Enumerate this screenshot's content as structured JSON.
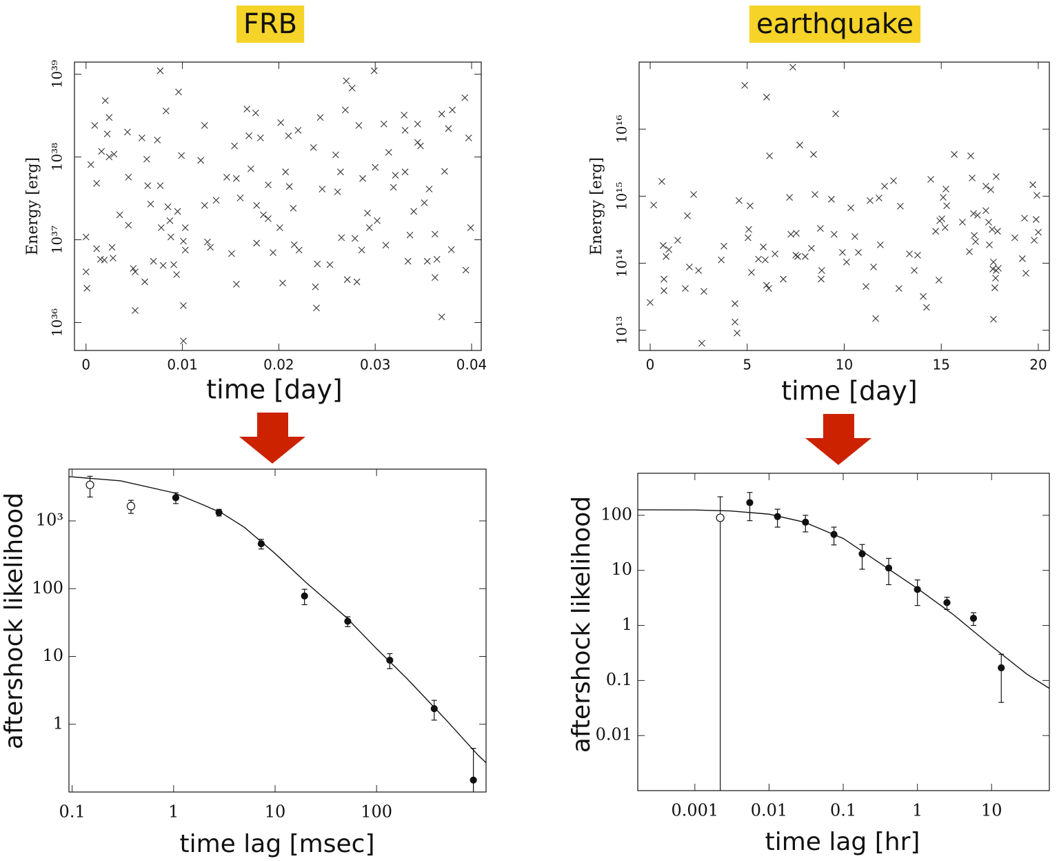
{
  "chart_data": [
    {
      "type": "scatter",
      "title": "FRB",
      "xlabel": "time [day]",
      "ylabel": "Energy [erg]",
      "color": "#333333",
      "marker": "x",
      "ylog": true,
      "xlog": false,
      "xlim": [
        -0.0012,
        0.041
      ],
      "ylim": [
        4.6e+35,
        1.4e+39
      ],
      "xticks": [
        0,
        0.01,
        0.02,
        0.03,
        0.04
      ],
      "yticks": [
        {
          "value": 1e+36,
          "label": "10³⁶"
        },
        {
          "value": 1e+37,
          "label": "10³⁷"
        },
        {
          "value": 1e+38,
          "label": "10³⁸"
        },
        {
          "value": 1e+39,
          "label": "10³⁹"
        }
      ],
      "x": [
        0,
        0,
        0.0001,
        0.0005,
        0.0009,
        0.0011,
        0.0011,
        0.0015,
        0.0016,
        0.002,
        0.0019,
        0.0022,
        0.0024,
        0.0024,
        0.0027,
        0.0028,
        0.0029,
        0.0035,
        0.0043,
        0.0044,
        0.0044,
        0.0049,
        0.0051,
        0.0051,
        0.0058,
        0.0061,
        0.0063,
        0.0064,
        0.0067,
        0.007,
        0.0074,
        0.0077,
        0.0077,
        0.0078,
        0.008,
        0.0083,
        0.0085,
        0.0088,
        0.0087,
        0.0091,
        0.0094,
        0.0095,
        0.0096,
        0.0099,
        0.0101,
        0.0103,
        0.0101,
        0.0101,
        0.0103,
        0.0123,
        0.0119,
        0.0123,
        0.0126,
        0.0129,
        0.0135,
        0.0151,
        0.0146,
        0.0154,
        0.0156,
        0.0156,
        0.016,
        0.0167,
        0.0169,
        0.0171,
        0.0176,
        0.0177,
        0.0177,
        0.0181,
        0.0184,
        0.0189,
        0.0189,
        0.0194,
        0.0201,
        0.0202,
        0.0204,
        0.0207,
        0.021,
        0.0211,
        0.0215,
        0.0216,
        0.022,
        0.0221,
        0.0236,
        0.0238,
        0.0239,
        0.0243,
        0.024,
        0.0245,
        0.0253,
        0.0259,
        0.0261,
        0.0264,
        0.0265,
        0.0269,
        0.027,
        0.0271,
        0.0276,
        0.0279,
        0.0281,
        0.0283,
        0.0286,
        0.0287,
        0.0292,
        0.0294,
        0.0299,
        0.03,
        0.0302,
        0.0309,
        0.0311,
        0.0314,
        0.0319,
        0.0321,
        0.033,
        0.0331,
        0.0334,
        0.0336,
        0.034,
        0.0344,
        0.0344,
        0.0347,
        0.0351,
        0.0356,
        0.0354,
        0.0362,
        0.0364,
        0.0369,
        0.0369,
        0.0372,
        0.0376,
        0.0379,
        0.038,
        0.0393,
        0.0397,
        0.0399,
        0.0394,
        0.0362,
        0.0331
      ],
      "values": [
        1.08e+37,
        4.1e+36,
        2.6e+36,
        8.1e+37,
        2.4e+38,
        4.8e+37,
        7.8e+36,
        5.8e+36,
        1.17e+38,
        4.8e+38,
        5.7e+36,
        1.9e+38,
        3e+38,
        1e+38,
        8.1e+36,
        6e+36,
        1.08e+38,
        2e+37,
        2e+38,
        5.7e+37,
        1.5e+37,
        4.5e+36,
        1.4e+36,
        4.1e+36,
        1.7e+38,
        3.1e+36,
        9.4e+37,
        4.5e+37,
        2.7e+37,
        5.5e+36,
        1.6e+38,
        1.1e+39,
        4.5e+37,
        1.4e+37,
        4.9e+36,
        3.6e+38,
        2.5e+37,
        1.08e+37,
        1.7e+37,
        5e+36,
        3.8e+36,
        2.2e+37,
        6.1e+38,
        1.04e+38,
        9.6e+36,
        7.5e+36,
        1.6e+36,
        6e+35,
        1.4e+37,
        2.4e+38,
        9.1e+37,
        2.6e+37,
        9.4e+36,
        8.1e+36,
        3e+37,
        6.8e+36,
        5.7e+37,
        1.36e+38,
        5.5e+37,
        2.9e+36,
        3.2e+37,
        3.8e+38,
        1.8e+38,
        7.2e+37,
        3.4e+38,
        2.6e+37,
        9.1e+36,
        1.7e+38,
        2e+37,
        4.6e+37,
        1.8e+37,
        7e+36,
        1.4e+37,
        2.6e+38,
        3e+36,
        6.6e+37,
        1.8e+38,
        4.4e+37,
        2.4e+37,
        8.7e+36,
        2.1e+38,
        7.5e+36,
        1.3e+38,
        2.7e+36,
        1.5e+36,
        3e+38,
        5.1e+36,
        4.1e+37,
        5e+36,
        1.06e+38,
        3.8e+37,
        6.6e+37,
        1.06e+37,
        3.7e+38,
        8.3e+38,
        3.3e+36,
        6.8e+38,
        1.04e+37,
        3.1e+36,
        2.4e+38,
        7.5e+36,
        5.5e+37,
        2.1e+37,
        1.4e+37,
        1.1e+39,
        7.5e+37,
        1.7e+37,
        2.5e+38,
        8.6e+36,
        1.14e+38,
        4.3e+37,
        6e+37,
        3.2e+38,
        6.6e+37,
        5.5e+36,
        1.14e+37,
        2.2e+37,
        2.5e+38,
        1.5e+38,
        1.36e+38,
        2.8e+37,
        4.1e+37,
        5.5e+36,
        1.17e+37,
        5.8e+36,
        1.17e+36,
        3.3e+38,
        6.7e+37,
        2.2e+38,
        7.6e+36,
        3.7e+38,
        5.2e+38,
        1.7e+38,
        1.4e+37,
        4.3e+36,
        3.5e+36,
        2.1e+38
      ]
    },
    {
      "type": "scatter",
      "title": "earthquake",
      "xlabel": "time [day]",
      "ylabel": "Energy [erg]",
      "color": "#333333",
      "marker": "x",
      "ylog": true,
      "xlog": false,
      "xlim": [
        -0.57,
        20.57
      ],
      "ylim": [
        5000000000000.0,
        1e+17
      ],
      "xticks": [
        0,
        5,
        10,
        15,
        20
      ],
      "yticks": [
        {
          "value": 10000000000000.0,
          "label": "10¹³"
        },
        {
          "value": 100000000000000.0,
          "label": "10¹⁴"
        },
        {
          "value": 1000000000000000.0,
          "label": "10¹⁵"
        },
        {
          "value": 1e+16,
          "label": "10¹⁶"
        }
      ],
      "x": [
        0,
        0.18,
        0.6,
        0.67,
        0.71,
        0.71,
        0.82,
        0.96,
        1.42,
        1.81,
        1.92,
        2.02,
        2.24,
        2.49,
        2.66,
        2.77,
        3.66,
        3.8,
        4.37,
        4.37,
        4.48,
        4.58,
        4.87,
        5.08,
        5.04,
        5.15,
        5.22,
        5.58,
        5.83,
        5.93,
        6.0,
        6.0,
        6.11,
        6.15,
        6.43,
        6.86,
        7.18,
        7.25,
        7.35,
        7.5,
        7.53,
        7.6,
        7.71,
        7.99,
        8.31,
        8.42,
        8.49,
        8.77,
        8.84,
        8.81,
        9.34,
        9.48,
        9.56,
        9.91,
        10.12,
        10.34,
        10.55,
        10.73,
        11.12,
        11.33,
        11.51,
        11.62,
        11.79,
        11.86,
        12.08,
        12.54,
        12.82,
        12.89,
        13.36,
        13.61,
        13.78,
        14.07,
        14.24,
        14.46,
        14.71,
        14.88,
        14.92,
        15.03,
        15.1,
        15.2,
        15.28,
        15.24,
        15.67,
        16.09,
        16.45,
        16.52,
        16.59,
        16.66,
        16.7,
        16.77,
        16.87,
        17.3,
        17.3,
        17.44,
        17.48,
        17.55,
        17.66,
        17.69,
        17.69,
        17.8,
        17.76,
        17.83,
        17.94,
        17.62,
        17.9,
        17.83,
        18.79,
        19.18,
        19.29,
        19.36,
        19.72,
        19.79,
        19.93,
        19.89,
        20.0
      ],
      "values": [
        26000000000000.0,
        740000000000000.0,
        1660000000000000.0,
        184000000000000.0,
        58000000000000.0,
        39000000000000.0,
        126000000000000.0,
        160000000000000.0,
        220000000000000.0,
        42000000000000.0,
        510000000000000.0,
        88000000000000.0,
        1060000000000000.0,
        78000000000000.0,
        6400000000000.0,
        38000000000000.0,
        112000000000000.0,
        180000000000000.0,
        25000000000000.0,
        13300000000000.0,
        9100000000000.0,
        860000000000000.0,
        4.5e+16,
        320000000000000.0,
        240000000000000.0,
        720000000000000.0,
        73000000000000.0,
        115000000000000.0,
        175000000000000.0,
        112000000000000.0,
        3e+16,
        47000000000000.0,
        42000000000000.0,
        4000000000000000.0,
        138000000000000.0,
        58000000000000.0,
        960000000000000.0,
        270000000000000.0,
        8.4e+16,
        132000000000000.0,
        280000000000000.0,
        126000000000000.0,
        5800000000000000.0,
        126000000000000.0,
        167000000000000.0,
        4200000000000000.0,
        1060000000000000.0,
        330000000000000.0,
        78000000000000.0,
        58000000000000.0,
        900000000000000.0,
        270000000000000.0,
        1.69e+16,
        145000000000000.0,
        104000000000000.0,
        670000000000000.0,
        250000000000000.0,
        145000000000000.0,
        45000000000000.0,
        860000000000000.0,
        88000000000000.0,
        15000000000000.0,
        940000000000000.0,
        188000000000000.0,
        1410000000000000.0,
        1700000000000000.0,
        42000000000000.0,
        710000000000000.0,
        138000000000000.0,
        78000000000000.0,
        132000000000000.0,
        32000000000000.0,
        22000000000000.0,
        1780000000000000.0,
        300000000000000.0,
        56000000000000.0,
        430000000000000.0,
        460000000000000.0,
        960000000000000.0,
        340000000000000.0,
        720000000000000.0,
        1280000000000000.0,
        4200000000000000.0,
        410000000000000.0,
        149000000000000.0,
        4000000000000000.0,
        1870000000000000.0,
        550000000000000.0,
        260000000000000.0,
        210000000000000.0,
        520000000000000.0,
        610000000000000.0,
        1410000000000000.0,
        410000000000000.0,
        188000000000000.0,
        1250000000000000.0,
        82000000000000.0,
        104000000000000.0,
        14600000000000.0,
        60000000000000.0,
        43000000000000.0,
        78000000000000.0,
        84000000000000.0,
        320000000000000.0,
        300000000000000.0,
        1960000000000000.0,
        240000000000000.0,
        117000000000000.0,
        470000000000000.0,
        71000000000000.0,
        1480000000000000.0,
        220000000000000.0,
        1030000000000000.0,
        450000000000000.0,
        290000000000000.0
      ]
    },
    {
      "type": "errorbar",
      "xlabel": "time lag [msec]",
      "ylabel": "aftershock likelihood",
      "color": "#111111",
      "xlog": true,
      "ylog": true,
      "xlim": [
        0.093,
        1200
      ],
      "ylim": [
        0.1,
        5800
      ],
      "xticks": [
        0.1,
        1,
        10,
        100
      ],
      "yticks": [
        1,
        10,
        100,
        {
          "value": 1000,
          "label": "10³"
        }
      ],
      "x": [
        0.15,
        0.38,
        1.05,
        2.8,
        7.3,
        19.5,
        52,
        135,
        370,
        900
      ],
      "values": [
        3400,
        1650,
        2200,
        1330,
        460,
        78,
        33,
        8.8,
        1.7,
        0.15
      ],
      "err": [
        1150,
        360,
        400,
        150,
        75,
        20,
        5.5,
        2.2,
        0.55,
        0.29
      ],
      "open": [
        true,
        true,
        false,
        false,
        false,
        false,
        false,
        false,
        false,
        false
      ],
      "fit": {
        "x": [
          0.093,
          0.3,
          1,
          2,
          3,
          5,
          10,
          20,
          50,
          100,
          200,
          500,
          1000,
          1200
        ],
        "values": [
          4500,
          3900,
          2600,
          1700,
          1300,
          800,
          330,
          125,
          38,
          13,
          4.7,
          1.1,
          0.35,
          0.27
        ]
      }
    },
    {
      "type": "errorbar",
      "xlabel": "time lag [hr]",
      "ylabel": "aftershock likelihood",
      "color": "#111111",
      "xlog": true,
      "ylog": true,
      "xlim": [
        0.00017,
        60
      ],
      "ylim": [
        0.001,
        580
      ],
      "xticks": [
        0.001,
        0.01,
        0.1,
        1,
        10
      ],
      "yticks": [
        0.01,
        0.1,
        1,
        10,
        100
      ],
      "x": [
        0.0022,
        0.0055,
        0.013,
        0.031,
        0.075,
        0.18,
        0.41,
        1.0,
        2.5,
        5.7,
        13.5
      ],
      "values": [
        90,
        170,
        95,
        75,
        45,
        20,
        11,
        4.5,
        2.6,
        1.35,
        0.17
      ],
      "err": [
        127,
        90,
        34,
        25,
        16,
        9.5,
        5.5,
        2.2,
        0.65,
        0.35,
        0.13
      ],
      "open": [
        true,
        false,
        false,
        false,
        false,
        false,
        false,
        false,
        false,
        false,
        false
      ],
      "fit": {
        "x": [
          0.00017,
          0.001,
          0.003,
          0.01,
          0.03,
          0.1,
          0.3,
          1,
          3,
          10,
          30,
          60
        ],
        "values": [
          126,
          125,
          120,
          105,
          75,
          38,
          14,
          4.7,
          1.6,
          0.42,
          0.13,
          0.072
        ]
      }
    }
  ]
}
